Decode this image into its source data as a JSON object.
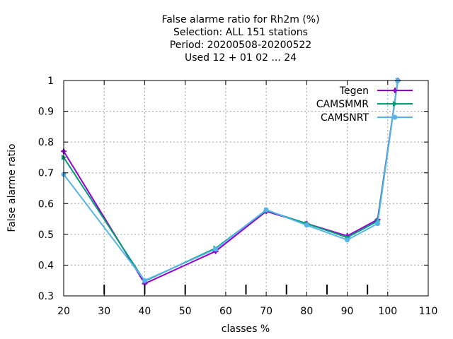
{
  "chart_data": {
    "type": "line",
    "title_lines": [
      "False alarme ratio  for Rh2m (%)",
      "Selection: ALL    151 stations",
      "Period: 20200508-20200522",
      "Used  12 + 01 02 ... 24"
    ],
    "xlabel": "classes %",
    "ylabel": "False alarme ratio",
    "xlim": [
      20,
      110
    ],
    "ylim": [
      0.3,
      1.0
    ],
    "xticks": [
      20,
      30,
      40,
      50,
      60,
      70,
      80,
      90,
      100,
      110
    ],
    "yticks": [
      0.3,
      0.4,
      0.5,
      0.6,
      0.7,
      0.8,
      0.9,
      1.0
    ],
    "ytick_labels": [
      "0.3",
      "0.4",
      "0.5",
      "0.6",
      "0.7",
      "0.8",
      "0.9",
      "1"
    ],
    "class_marks": [
      30,
      40,
      50,
      65,
      75,
      85,
      95
    ],
    "grid": true,
    "legend_position": "top-right",
    "series": [
      {
        "name": "Tegen",
        "color": "#9400d3",
        "marker": "plus",
        "x": [
          20,
          40,
          57.5,
          70,
          80,
          90,
          97.5,
          102.5
        ],
        "y": [
          0.77,
          0.34,
          0.445,
          0.575,
          0.535,
          0.495,
          0.548,
          1.0
        ]
      },
      {
        "name": "CAMSMMR",
        "color": "#009e73",
        "marker": "triangle",
        "x": [
          20,
          40,
          57.5,
          70,
          80,
          90,
          97.5,
          102.5
        ],
        "y": [
          0.75,
          0.348,
          0.455,
          0.578,
          0.535,
          0.49,
          0.543,
          1.0
        ]
      },
      {
        "name": "CAMSNRT",
        "color": "#56b4e9",
        "marker": "circle",
        "x": [
          20,
          40,
          57.5,
          70,
          80,
          90,
          97.5,
          102.5
        ],
        "y": [
          0.695,
          0.35,
          0.452,
          0.58,
          0.53,
          0.482,
          0.535,
          1.0
        ]
      }
    ]
  }
}
